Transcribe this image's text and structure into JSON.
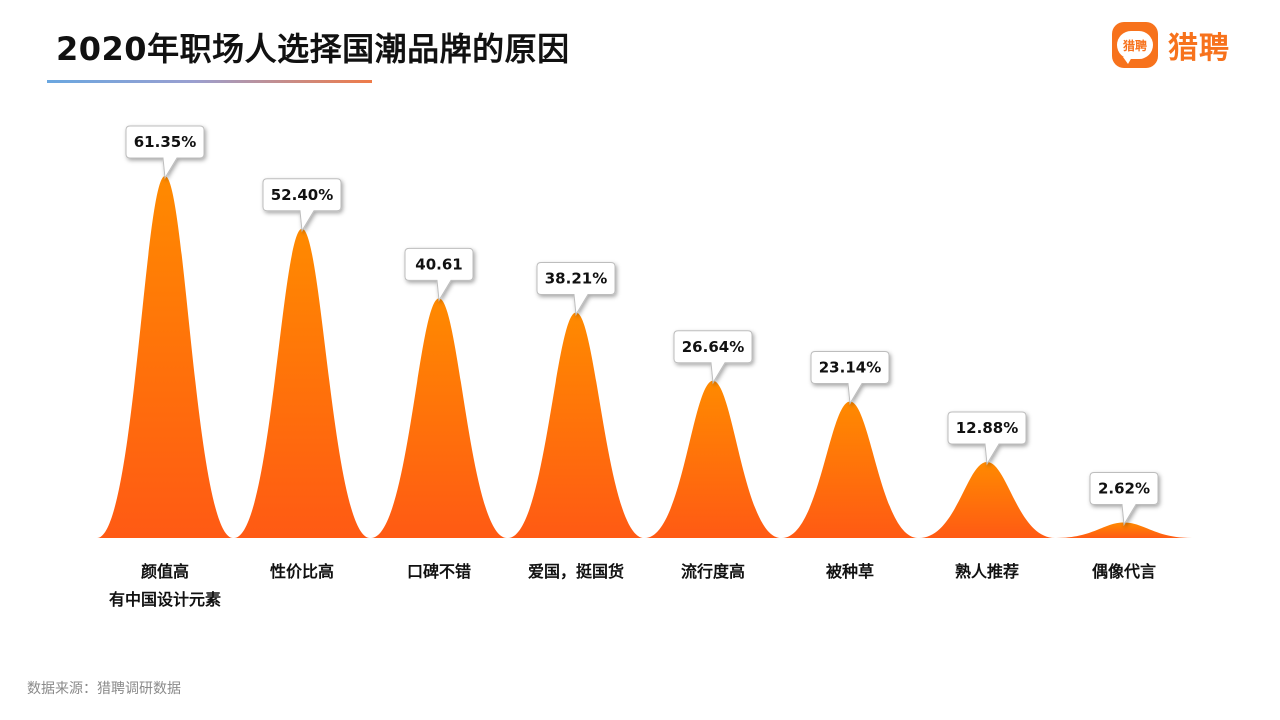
{
  "header": {
    "title": "2020年职场人选择国潮品牌的原因",
    "logo_badge_text": "猎聘",
    "logo_text": "猎聘"
  },
  "colors": {
    "accent": "#f7721c",
    "peak_top": "#ff8a00",
    "peak_bottom": "#ff5a14"
  },
  "chart_data": {
    "type": "area",
    "categories": [
      "颜值高\n有中国设计元素",
      "性价比高",
      "口碑不错",
      "爱国，挺国货",
      "流行度高",
      "被种草",
      "熟人推荐",
      "偶像代言"
    ],
    "values": [
      61.35,
      52.4,
      40.61,
      38.21,
      26.64,
      23.14,
      12.88,
      2.62
    ],
    "data_labels": [
      "61.35%",
      "52.40%",
      "40.61",
      "38.21%",
      "26.64%",
      "23.14%",
      "12.88%",
      "2.62%"
    ],
    "ylim": [
      0,
      61.35
    ],
    "grid": false,
    "legend": "none"
  },
  "footer": {
    "source": "数据来源：猎聘调研数据"
  }
}
